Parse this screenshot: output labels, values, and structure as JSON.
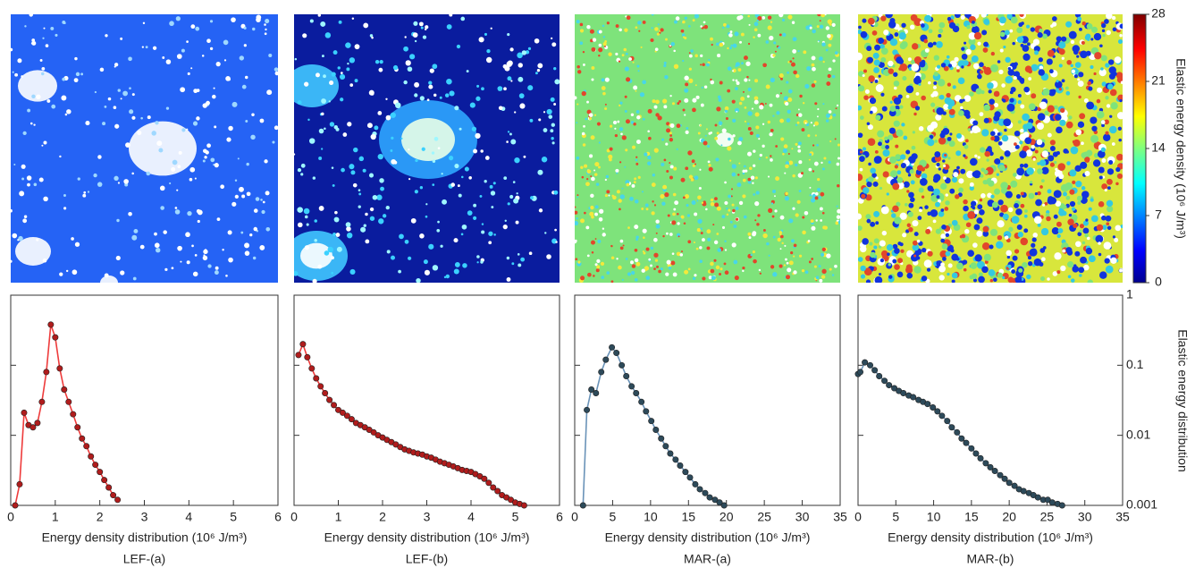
{
  "colorbar": {
    "label": "Elastic energy density (10⁶ J/m³)",
    "lim": [
      0,
      28
    ],
    "ticks": [
      0,
      7,
      14,
      21,
      28
    ]
  },
  "chart_data": [
    {
      "type": "line",
      "caption": "LEF-(a)",
      "xlabel": "Energy density distribution (10⁶ J/m³)",
      "xlim": [
        0,
        6
      ],
      "xticks": [
        0,
        1,
        2,
        3,
        4,
        5,
        6
      ],
      "ylim": [
        0.001,
        1
      ],
      "yticks": [
        0.001,
        0.01,
        0.1,
        1
      ],
      "yscale": "log",
      "color": "#ee3b3b",
      "marker_color": "#b01c1c",
      "x": [
        0.1,
        0.2,
        0.3,
        0.4,
        0.5,
        0.6,
        0.7,
        0.8,
        0.9,
        1.0,
        1.1,
        1.2,
        1.3,
        1.4,
        1.5,
        1.6,
        1.7,
        1.8,
        1.9,
        2.0,
        2.1,
        2.2,
        2.3,
        2.4
      ],
      "values": [
        0.001,
        0.002,
        0.021,
        0.014,
        0.013,
        0.015,
        0.03,
        0.08,
        0.38,
        0.25,
        0.09,
        0.045,
        0.03,
        0.02,
        0.013,
        0.009,
        0.007,
        0.005,
        0.0038,
        0.003,
        0.0023,
        0.0018,
        0.0014,
        0.0012
      ]
    },
    {
      "type": "line",
      "caption": "LEF-(b)",
      "xlabel": "Energy density distribution (10⁶ J/m³)",
      "xlim": [
        0,
        6
      ],
      "xticks": [
        0,
        1,
        2,
        3,
        4,
        5,
        6
      ],
      "ylim": [
        0.001,
        1
      ],
      "yticks": [
        0.001,
        0.01,
        0.1,
        1
      ],
      "yscale": "log",
      "color": "#ee3b3b",
      "marker_color": "#b01c1c",
      "x": [
        0.1,
        0.2,
        0.3,
        0.4,
        0.5,
        0.6,
        0.7,
        0.8,
        0.9,
        1.0,
        1.1,
        1.2,
        1.3,
        1.4,
        1.5,
        1.6,
        1.7,
        1.8,
        1.9,
        2.0,
        2.1,
        2.2,
        2.3,
        2.4,
        2.5,
        2.6,
        2.7,
        2.8,
        2.9,
        3.0,
        3.1,
        3.2,
        3.3,
        3.4,
        3.5,
        3.6,
        3.7,
        3.8,
        3.9,
        4.0,
        4.1,
        4.2,
        4.3,
        4.4,
        4.5,
        4.6,
        4.7,
        4.8,
        4.9,
        5.0,
        5.1,
        5.2
      ],
      "values": [
        0.14,
        0.2,
        0.13,
        0.09,
        0.065,
        0.05,
        0.04,
        0.032,
        0.027,
        0.023,
        0.021,
        0.019,
        0.017,
        0.015,
        0.014,
        0.013,
        0.012,
        0.011,
        0.01,
        0.0093,
        0.0086,
        0.008,
        0.0074,
        0.0068,
        0.0063,
        0.006,
        0.0057,
        0.0055,
        0.0053,
        0.005,
        0.0048,
        0.0045,
        0.0042,
        0.004,
        0.0038,
        0.0036,
        0.0034,
        0.0032,
        0.0031,
        0.003,
        0.0028,
        0.0026,
        0.0024,
        0.0021,
        0.0018,
        0.0016,
        0.0014,
        0.0013,
        0.0012,
        0.0011,
        0.00105,
        0.001
      ]
    },
    {
      "type": "line",
      "caption": "MAR-(a)",
      "xlabel": "Energy density distribution (10⁶ J/m³)",
      "xlim": [
        0,
        35
      ],
      "xticks": [
        0,
        5,
        10,
        15,
        20,
        25,
        30,
        35
      ],
      "ylim": [
        0.001,
        1
      ],
      "yticks": [
        0.001,
        0.01,
        0.1,
        1
      ],
      "yscale": "log",
      "color": "#6a93b8",
      "marker_color": "#2d4a5a",
      "x": [
        1.1,
        1.6,
        2.2,
        2.8,
        3.5,
        4.1,
        4.9,
        5.5,
        6.2,
        6.8,
        7.5,
        8.1,
        8.8,
        9.4,
        10.1,
        10.7,
        11.4,
        12.0,
        12.6,
        13.3,
        13.9,
        14.6,
        15.2,
        15.9,
        16.5,
        17.2,
        17.8,
        18.5,
        19.1,
        19.7
      ],
      "values": [
        0.001,
        0.023,
        0.045,
        0.04,
        0.08,
        0.12,
        0.18,
        0.15,
        0.1,
        0.07,
        0.05,
        0.04,
        0.03,
        0.022,
        0.016,
        0.012,
        0.009,
        0.007,
        0.0055,
        0.0045,
        0.0037,
        0.003,
        0.0025,
        0.002,
        0.0017,
        0.0015,
        0.0013,
        0.0012,
        0.0011,
        0.001
      ]
    },
    {
      "type": "line",
      "caption": "MAR-(b)",
      "xlabel": "Energy density distribution (10⁶ J/m³)",
      "ylabel": "Elastic energy distribution",
      "xlim": [
        0,
        35
      ],
      "xticks": [
        0,
        5,
        10,
        15,
        20,
        25,
        30,
        35
      ],
      "ylim": [
        0.001,
        1
      ],
      "yticks": [
        0.001,
        0.01,
        0.1,
        1
      ],
      "yscale": "log",
      "color": "#6a93b8",
      "marker_color": "#2d4a5a",
      "x": [
        0,
        0.3,
        0.9,
        1.6,
        2.2,
        2.8,
        3.5,
        4.1,
        4.8,
        5.4,
        6.0,
        6.7,
        7.3,
        8.0,
        8.6,
        9.2,
        9.9,
        10.5,
        11.1,
        11.8,
        12.4,
        13.1,
        13.7,
        14.3,
        15.0,
        15.6,
        16.2,
        16.9,
        17.5,
        18.1,
        18.8,
        19.4,
        20.0,
        20.7,
        21.3,
        21.9,
        22.6,
        23.2,
        23.8,
        24.5,
        25.1,
        25.7,
        26.4,
        27.0
      ],
      "values": [
        0.075,
        0.08,
        0.11,
        0.1,
        0.085,
        0.07,
        0.06,
        0.052,
        0.047,
        0.043,
        0.04,
        0.037,
        0.035,
        0.032,
        0.03,
        0.028,
        0.025,
        0.022,
        0.019,
        0.016,
        0.013,
        0.011,
        0.009,
        0.0078,
        0.0065,
        0.0055,
        0.0047,
        0.004,
        0.0035,
        0.0031,
        0.0027,
        0.0024,
        0.0021,
        0.0019,
        0.0017,
        0.0016,
        0.0015,
        0.0014,
        0.0013,
        0.0012,
        0.0012,
        0.0011,
        0.00105,
        0.001
      ]
    }
  ]
}
